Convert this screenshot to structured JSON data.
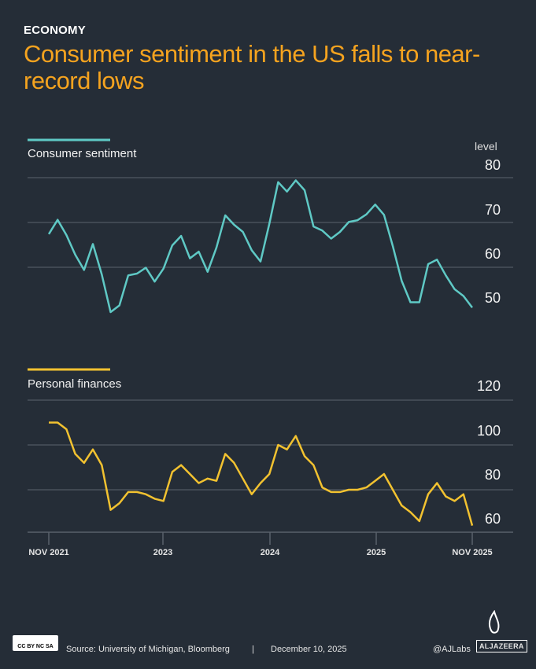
{
  "header": {
    "kicker": "ECONOMY",
    "title": "Consumer sentiment in the US falls to near-record lows"
  },
  "colors": {
    "background": "#252d37",
    "title": "#f5a31f",
    "sentiment": "#5fc9c5",
    "finances": "#f2c230",
    "grid": "#5a626c"
  },
  "chart_data": [
    {
      "type": "line",
      "title": "Consumer sentiment",
      "ylabel": "level",
      "ylim": [
        47,
        82
      ],
      "yticks": [
        "80",
        "70",
        "60",
        "50"
      ],
      "x_range": [
        "Nov 2021",
        "Nov 2025"
      ],
      "frequency": "monthly",
      "series": [
        {
          "name": "Consumer sentiment",
          "color": "#5fc9c5",
          "values": [
            67.4,
            70.6,
            67.2,
            62.8,
            59.4,
            65.2,
            58.4,
            50.0,
            51.5,
            58.2,
            58.6,
            59.9,
            56.8,
            59.7,
            64.9,
            67.0,
            62.0,
            63.5,
            59.0,
            64.4,
            71.6,
            69.5,
            67.9,
            63.8,
            61.3,
            69.7,
            79.0,
            76.9,
            79.4,
            77.2,
            69.1,
            68.2,
            66.4,
            67.9,
            70.1,
            70.5,
            71.8,
            74.0,
            71.7,
            64.7,
            57.0,
            52.2,
            52.2,
            60.7,
            61.7,
            58.2,
            55.1,
            53.6,
            51.0
          ]
        }
      ],
      "grid": true
    },
    {
      "type": "line",
      "title": "Personal finances",
      "ylim": [
        60,
        120
      ],
      "yticks": [
        "120",
        "100",
        "80",
        "60"
      ],
      "xticks": [
        "NOV 2021",
        "2023",
        "2024",
        "2025",
        "NOV 2025"
      ],
      "x_range": [
        "Nov 2021",
        "Nov 2025"
      ],
      "frequency": "monthly",
      "series": [
        {
          "name": "Personal finances",
          "color": "#f2c230",
          "values": [
            110,
            110,
            107,
            96,
            92,
            98,
            91,
            71,
            74,
            79,
            79,
            78,
            76,
            75,
            88,
            91,
            87,
            83,
            85,
            84,
            96,
            92,
            85,
            78,
            83,
            87,
            100,
            98,
            104,
            95,
            91,
            81,
            79,
            79,
            80,
            80,
            81,
            84,
            87,
            80,
            73,
            70,
            66,
            78,
            83,
            77,
            75,
            78,
            64
          ]
        }
      ],
      "grid": true
    }
  ],
  "footer": {
    "license": "CC BY NC SA",
    "source": "Source:  University of Michigan, Bloomberg",
    "separator": "|",
    "date": "December 10, 2025",
    "handle": "@AJLabs",
    "brand": "ALJAZEERA"
  }
}
